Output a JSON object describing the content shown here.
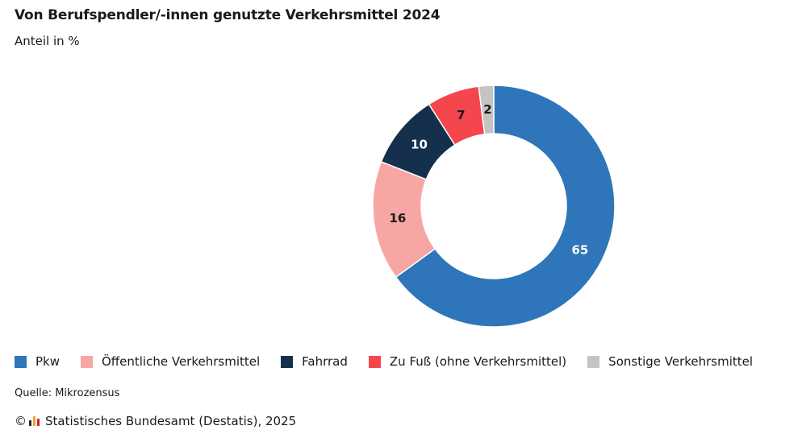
{
  "title": "Von Berufspendler/-innen genutzte Verkehrsmittel 2024",
  "subtitle": "Anteil in %",
  "source": "Quelle: Mikrozensus",
  "copyright_symbol": "©",
  "copyright": "Statistisches Bundesamt (Destatis), 2025",
  "logo": {
    "icon": "destatis-logo-icon",
    "colors": [
      "#1f2b3a",
      "#e8a33d",
      "#d2242a"
    ]
  },
  "chart_data": {
    "type": "pie",
    "variant": "donut",
    "title": "Von Berufspendler/-innen genutzte Verkehrsmittel 2024",
    "subtitle": "Anteil in %",
    "unit": "%",
    "legend_position": "bottom-left",
    "start_angle_deg": 0,
    "direction": "clockwise",
    "categories": [
      "Pkw",
      "Öffentliche Verkehrsmittel",
      "Fahrrad",
      "Zu Fuß (ohne Verkehrsmittel)",
      "Sonstige Verkehrsmittel"
    ],
    "values": [
      65,
      16,
      10,
      7,
      2
    ],
    "data_labels": [
      "65",
      "16",
      "10",
      "7",
      "2"
    ],
    "colors": [
      "#2e76b9",
      "#f8a6a3",
      "#15304d",
      "#f5464d",
      "#c4c4c4"
    ],
    "label_colors": [
      "#ffffff",
      "#1a1a1a",
      "#ffffff",
      "#1a1a1a",
      "#1a1a1a"
    ]
  }
}
